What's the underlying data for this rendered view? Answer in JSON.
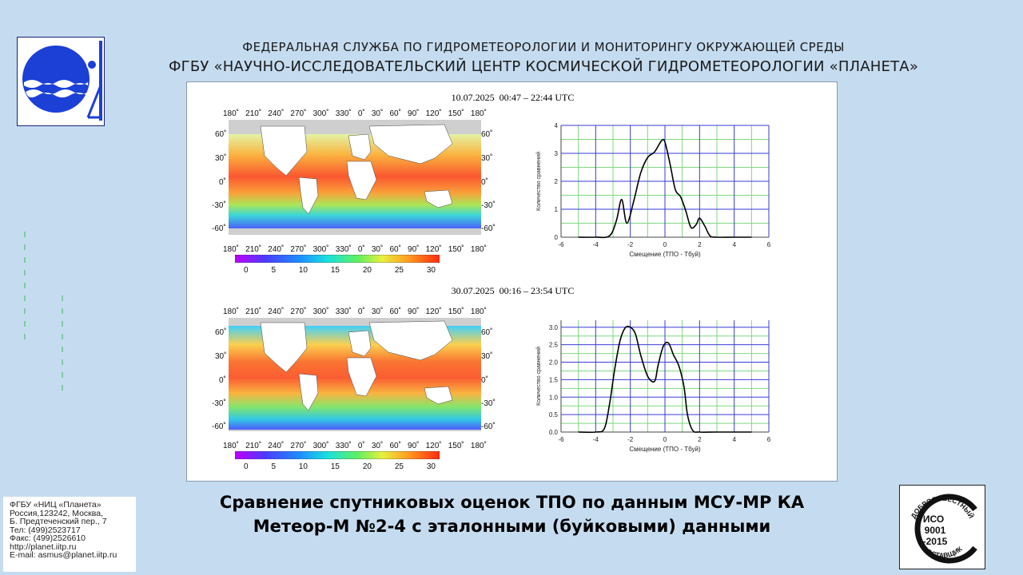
{
  "header": {
    "line1": "ФЕДЕРАЛЬНАЯ СЛУЖБА ПО ГИДРОМЕТЕОРОЛОГИИ И МОНИТОРИНГУ ОКРУЖАЮЩЕЙ СРЕДЫ",
    "line2": "ФГБУ «НАУЧНО-ИССЛЕДОВАТЕЛЬСКИЙ ЦЕНТР КОСМИЧЕСКОЙ ГИДРОМЕТЕОРОЛОГИИ «ПЛАНЕТА»"
  },
  "panels": [
    {
      "date": "10.07.2025  00:47 – 22:44 UTC"
    },
    {
      "date": "30.07.2025  00:16 – 23:54 UTC"
    }
  ],
  "map": {
    "lon_ticks": [
      "180˚",
      "210˚",
      "240˚",
      "270˚",
      "300˚",
      "330˚",
      "0˚",
      "30˚",
      "60˚",
      "90˚",
      "120˚",
      "150˚",
      "180˚"
    ],
    "lat_ticks": [
      "60˚",
      "30˚",
      "0˚",
      "-30˚",
      "-60˚"
    ],
    "colorbar_ticks": [
      "0",
      "5",
      "10",
      "15",
      "20",
      "25",
      "30"
    ]
  },
  "colors": {
    "background": "#c5dcf0",
    "logo_blue": "#1c3fd6",
    "plot_grid_blue": "#3a3ad8",
    "plot_grid_green": "#7fd87f"
  },
  "chart_data": [
    {
      "type": "line",
      "title": "",
      "xlabel": "Смещение (ТПО - Тбуй)",
      "ylabel": "Количество сравнений",
      "xlim": [
        -6,
        6
      ],
      "ylim": [
        0,
        4
      ],
      "x_ticks": [
        "-6",
        "-4",
        "-2",
        "0",
        "2",
        "4",
        "6"
      ],
      "y_ticks": [
        "0",
        "1",
        "2",
        "3",
        "4"
      ],
      "x": [
        -5.0,
        -4.0,
        -3.2,
        -2.8,
        -2.5,
        -2.2,
        -1.8,
        -1.4,
        -1.0,
        -0.6,
        -0.2,
        0.0,
        0.3,
        0.6,
        0.9,
        1.2,
        1.5,
        1.8,
        2.0,
        2.3,
        2.6,
        3.0,
        4.0,
        5.0
      ],
      "y": [
        0,
        0,
        0.05,
        0.6,
        1.35,
        0.5,
        1.3,
        2.3,
        2.85,
        3.05,
        3.45,
        3.4,
        2.6,
        1.7,
        1.45,
        0.95,
        0.35,
        0.45,
        0.68,
        0.4,
        0.05,
        0,
        0,
        0
      ]
    },
    {
      "type": "line",
      "title": "",
      "xlabel": "Смещение (ТПО - Тбуй)",
      "ylabel": "Количество сравнений",
      "xlim": [
        -6,
        6
      ],
      "ylim": [
        0,
        3.2
      ],
      "x_ticks": [
        "-6",
        "-4",
        "-2",
        "0",
        "2",
        "4",
        "6"
      ],
      "y_ticks": [
        "0.0",
        "0.5",
        "1.0",
        "1.5",
        "2.0",
        "2.5",
        "3.0"
      ],
      "x": [
        -5.0,
        -4.0,
        -3.5,
        -3.2,
        -2.9,
        -2.6,
        -2.3,
        -2.0,
        -1.7,
        -1.4,
        -1.0,
        -0.6,
        -0.4,
        -0.1,
        0.2,
        0.5,
        0.8,
        1.1,
        1.3,
        1.6,
        2.0,
        3.0,
        5.0
      ],
      "y": [
        0,
        0,
        0.1,
        0.8,
        1.8,
        2.6,
        2.98,
        3.0,
        2.8,
        2.2,
        1.6,
        1.45,
        1.9,
        2.45,
        2.55,
        2.2,
        1.9,
        1.3,
        0.5,
        0.05,
        0,
        0,
        0
      ]
    }
  ],
  "contact": {
    "lines": [
      "ФГБУ «НИЦ «Планета»",
      "Россия,123242, Москва,",
      "Б. Предтеченский пер., 7",
      "Тел:   (499)2523717",
      "Факс: (499)2526610",
      "http://planet.iitp.ru",
      "E-mail: asmus@planet.iitp.ru"
    ]
  },
  "caption": {
    "line1": "Сравнение спутниковых оценок ТПО по данным МСУ-МР КА",
    "line2": "Метеор-М №2-4 с эталонными (буйковыми) данными"
  },
  "iso_badge": {
    "top_text": "ДОБРОСОВЕСТНЫЙ",
    "iso": "ИСО",
    "number": "9001",
    "year": "-2015",
    "bottom_text": "ПОСТАВЩИК"
  }
}
